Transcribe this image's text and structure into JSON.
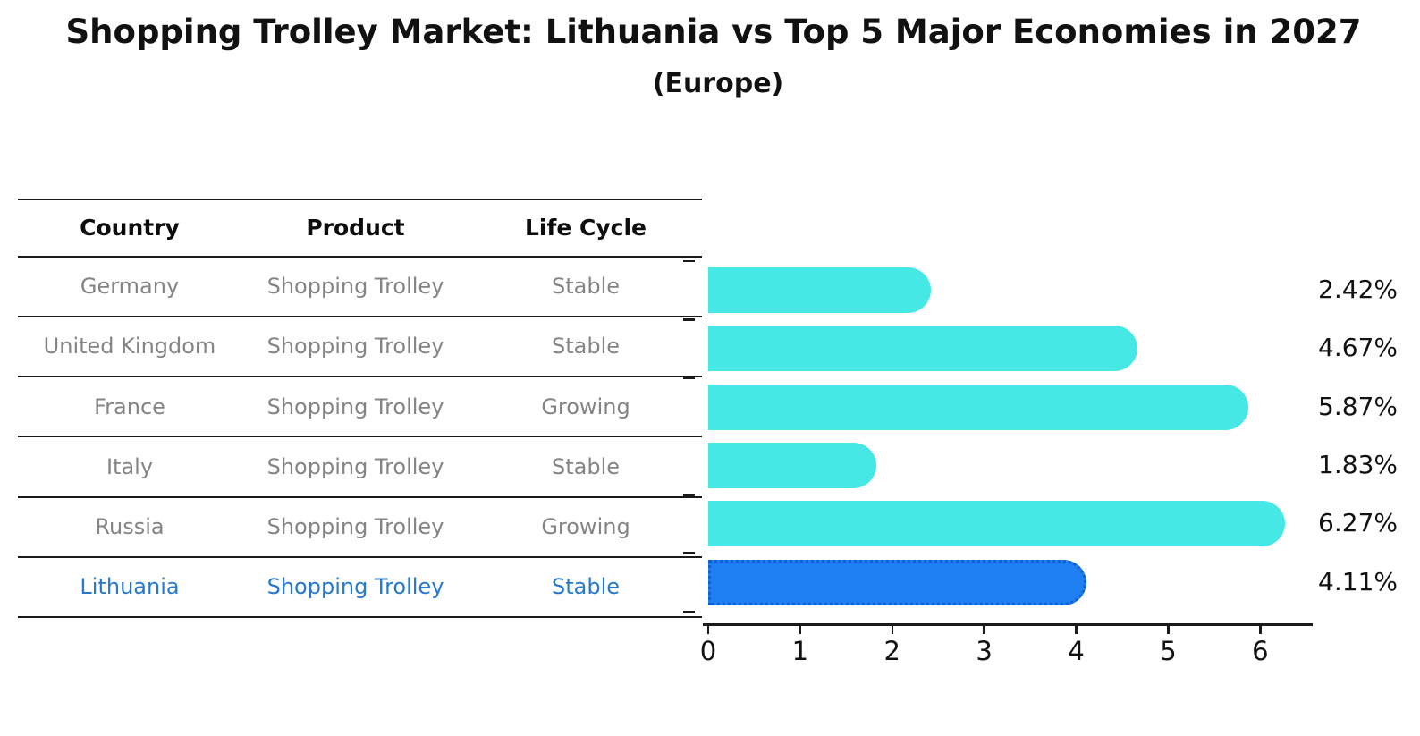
{
  "figure": {
    "title": "Shopping Trolley Market: Lithuania vs Top 5 Major Economies in 2027",
    "subtitle": "(Europe)"
  },
  "table": {
    "headers": [
      "Country",
      "Product",
      "Life Cycle"
    ],
    "rows": [
      {
        "country": "Germany",
        "product": "Shopping Trolley",
        "life_cycle": "Stable"
      },
      {
        "country": "United Kingdom",
        "product": "Shopping Trolley",
        "life_cycle": "Stable"
      },
      {
        "country": "France",
        "product": "Shopping Trolley",
        "life_cycle": "Growing"
      },
      {
        "country": "Italy",
        "product": "Shopping Trolley",
        "life_cycle": "Stable"
      },
      {
        "country": "Russia",
        "product": "Shopping Trolley",
        "life_cycle": "Growing"
      },
      {
        "country": "Lithuania",
        "product": "Shopping Trolley",
        "life_cycle": "Stable"
      }
    ],
    "highlight_row_index": 5,
    "highlight_text_color": "#2779CD",
    "text_color": "#848484",
    "header_text_color": "#0d0d0d"
  },
  "chart_data": {
    "type": "bar",
    "orientation": "horizontal",
    "title": "Shopping Trolley Market: Lithuania vs Top 5 Major Economies in 2027 (Europe)",
    "categories": [
      "Germany",
      "United Kingdom",
      "France",
      "Italy",
      "Russia",
      "Lithuania"
    ],
    "values": [
      2.42,
      4.67,
      5.87,
      1.83,
      6.27,
      4.11
    ],
    "value_labels": [
      "2.42%",
      "4.67%",
      "5.87%",
      "1.83%",
      "6.27%",
      "4.11%"
    ],
    "x_ticks": [
      "0",
      "1",
      "2",
      "3",
      "4",
      "5",
      "6"
    ],
    "xlim": [
      0,
      6.58
    ],
    "xlabel": "",
    "ylabel": "",
    "grid": false,
    "legend": false,
    "bar_color": "#46E8E5",
    "highlight_index": 5,
    "highlight_bar_color": "#1E7FF2",
    "highlight_border_color": "#0E5FD2"
  }
}
